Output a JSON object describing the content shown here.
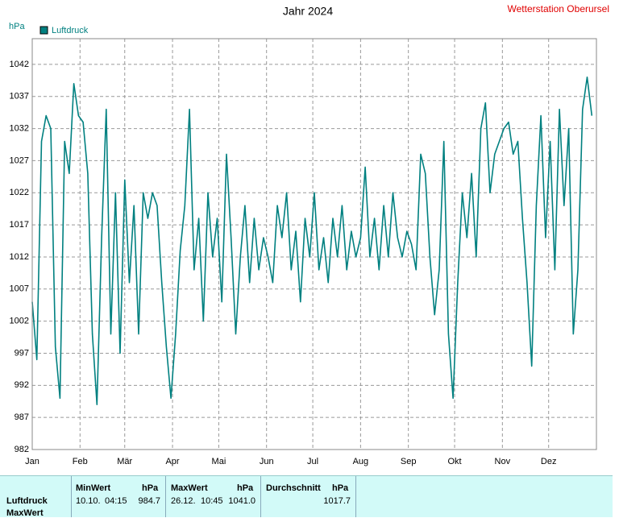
{
  "chart_data": {
    "type": "line",
    "title": "Jahr 2024",
    "station": "Wetterstation Oberursel",
    "y_label": "hPa",
    "xlim": [
      0,
      366
    ],
    "xticks": [
      {
        "value": 0,
        "label": "Jan"
      },
      {
        "value": 31,
        "label": "Feb"
      },
      {
        "value": 60,
        "label": "Mär"
      },
      {
        "value": 91,
        "label": "Apr"
      },
      {
        "value": 121,
        "label": "Mai"
      },
      {
        "value": 152,
        "label": "Jun"
      },
      {
        "value": 182,
        "label": "Jul"
      },
      {
        "value": 213,
        "label": "Aug"
      },
      {
        "value": 244,
        "label": "Sep"
      },
      {
        "value": 274,
        "label": "Okt"
      },
      {
        "value": 305,
        "label": "Nov"
      },
      {
        "value": 335,
        "label": "Dez"
      }
    ],
    "ylim": [
      982,
      1046
    ],
    "yticks": [
      982,
      987,
      992,
      997,
      1002,
      1007,
      1012,
      1017,
      1022,
      1027,
      1032,
      1037,
      1042
    ],
    "grid": true,
    "x": [
      0,
      3,
      6,
      9,
      12,
      15,
      18,
      21,
      24,
      27,
      30,
      33,
      36,
      39,
      42,
      45,
      48,
      51,
      54,
      57,
      60,
      63,
      66,
      69,
      72,
      75,
      78,
      81,
      84,
      87,
      90,
      93,
      96,
      99,
      102,
      105,
      108,
      111,
      114,
      117,
      120,
      123,
      126,
      129,
      132,
      135,
      138,
      141,
      144,
      147,
      150,
      153,
      156,
      159,
      162,
      165,
      168,
      171,
      174,
      177,
      180,
      183,
      186,
      189,
      192,
      195,
      198,
      201,
      204,
      207,
      210,
      213,
      216,
      219,
      222,
      225,
      228,
      231,
      234,
      237,
      240,
      243,
      246,
      249,
      252,
      255,
      258,
      261,
      264,
      267,
      270,
      273,
      276,
      279,
      282,
      285,
      288,
      291,
      294,
      297,
      300,
      303,
      306,
      309,
      312,
      315,
      318,
      321,
      324,
      327,
      330,
      333,
      336,
      339,
      342,
      345,
      348,
      351,
      354,
      357,
      360,
      363
    ],
    "series": [
      {
        "name": "Luftdruck",
        "color": "#008080",
        "values": [
          1005,
          996,
          1030,
          1034,
          1032,
          998,
          990,
          1030,
          1025,
          1039,
          1034,
          1033,
          1025,
          1000,
          989,
          1015,
          1035,
          1000,
          1022,
          997,
          1024,
          1008,
          1020,
          1000,
          1022,
          1018,
          1022,
          1020,
          1008,
          998,
          990,
          1000,
          1013,
          1020,
          1035,
          1010,
          1018,
          1002,
          1022,
          1012,
          1018,
          1005,
          1028,
          1015,
          1000,
          1012,
          1020,
          1008,
          1018,
          1010,
          1015,
          1012,
          1008,
          1020,
          1015,
          1022,
          1010,
          1016,
          1005,
          1018,
          1012,
          1022,
          1010,
          1015,
          1008,
          1018,
          1012,
          1020,
          1010,
          1016,
          1012,
          1015,
          1026,
          1012,
          1018,
          1010,
          1020,
          1012,
          1022,
          1015,
          1012,
          1016,
          1014,
          1010,
          1028,
          1025,
          1012,
          1003,
          1010,
          1030,
          1000,
          990,
          1008,
          1022,
          1015,
          1025,
          1012,
          1032,
          1036,
          1022,
          1028,
          1030,
          1032,
          1033,
          1028,
          1030,
          1018,
          1008,
          995,
          1020,
          1034,
          1015,
          1030,
          1010,
          1035,
          1020,
          1032,
          1000,
          1010,
          1035,
          1040,
          1034
        ]
      }
    ]
  },
  "table": {
    "row_labels": [
      "Luftdruck",
      "MaxWert"
    ],
    "columns": [
      {
        "name": "MinWert",
        "unit": "hPa",
        "date": "10.10.",
        "time": "04:15",
        "value": "984.7"
      },
      {
        "name": "MaxWert",
        "unit": "hPa",
        "date": "26.12.",
        "time": "10:45",
        "value": "1041.0"
      },
      {
        "name": "Durchschnitt",
        "unit": "hPa",
        "value": "1017.7"
      }
    ]
  }
}
